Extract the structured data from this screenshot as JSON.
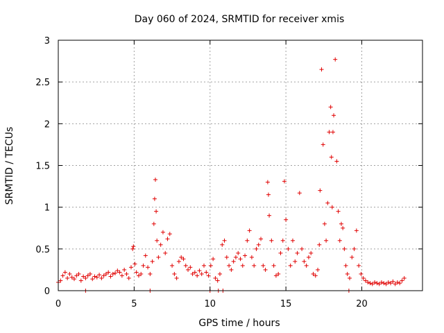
{
  "chart_data": {
    "type": "scatter",
    "title": "Day 060 of 2024, SRMTID for receiver xmis",
    "xlabel": "GPS time / hours",
    "ylabel": "SRMTID / TECUs",
    "xlim": [
      0,
      24
    ],
    "ylim": [
      0,
      3
    ],
    "xticks": [
      0,
      5,
      10,
      15,
      20
    ],
    "yticks": [
      0,
      0.5,
      1,
      1.5,
      2,
      2.5,
      3
    ],
    "xtick_labels": [
      "0",
      "5",
      "10",
      "15",
      "20"
    ],
    "ytick_labels": [
      "0",
      "0.5",
      "1",
      "1.5",
      "2",
      "2.5",
      "3"
    ],
    "grid": true,
    "marker": "plus",
    "color": "#e00000",
    "series": [
      {
        "name": "SRMTID",
        "x": [
          0.0,
          0.15,
          0.3,
          0.45,
          0.6,
          0.75,
          0.9,
          1.05,
          1.2,
          1.35,
          1.5,
          1.65,
          1.8,
          1.95,
          2.1,
          2.25,
          2.4,
          2.55,
          2.7,
          2.85,
          3.0,
          3.15,
          3.3,
          3.45,
          3.6,
          3.75,
          3.9,
          4.05,
          4.2,
          4.35,
          4.5,
          4.65,
          4.8,
          4.9,
          4.95,
          5.05,
          5.15,
          5.3,
          5.45,
          5.6,
          5.75,
          5.9,
          6.05,
          6.2,
          6.3,
          6.35,
          6.4,
          6.45,
          6.5,
          6.6,
          6.75,
          6.9,
          7.05,
          7.2,
          7.35,
          7.5,
          7.65,
          7.8,
          7.95,
          8.1,
          8.25,
          8.4,
          8.55,
          8.7,
          8.85,
          9.0,
          9.15,
          9.3,
          9.45,
          9.6,
          9.75,
          9.9,
          10.05,
          10.2,
          10.35,
          10.5,
          10.65,
          10.8,
          10.95,
          11.1,
          11.25,
          11.4,
          11.55,
          11.7,
          11.85,
          12.0,
          12.15,
          12.3,
          12.45,
          12.6,
          12.75,
          12.9,
          13.05,
          13.2,
          13.35,
          13.5,
          13.65,
          13.8,
          13.85,
          13.9,
          14.05,
          14.2,
          14.35,
          14.5,
          14.65,
          14.8,
          14.9,
          15.0,
          15.15,
          15.3,
          15.45,
          15.6,
          15.75,
          15.9,
          16.05,
          16.2,
          16.35,
          16.5,
          16.65,
          16.8,
          16.95,
          17.1,
          17.2,
          17.25,
          17.35,
          17.45,
          17.55,
          17.65,
          17.75,
          17.85,
          17.95,
          18.0,
          18.05,
          18.1,
          18.15,
          18.25,
          18.35,
          18.45,
          18.55,
          18.65,
          18.75,
          18.85,
          18.95,
          19.05,
          19.2,
          19.35,
          19.5,
          19.65,
          19.8,
          19.95,
          20.1,
          20.25,
          20.4,
          20.55,
          20.7,
          20.85,
          21.0,
          21.15,
          21.3,
          21.45,
          21.6,
          21.75,
          21.9,
          22.05,
          22.2,
          22.35,
          22.5,
          22.65,
          22.8,
          1.8,
          6.05,
          10.0,
          10.55,
          10.85,
          19.15
        ],
        "y": [
          0.1,
          0.12,
          0.18,
          0.22,
          0.15,
          0.2,
          0.16,
          0.14,
          0.18,
          0.2,
          0.12,
          0.17,
          0.15,
          0.18,
          0.2,
          0.14,
          0.17,
          0.16,
          0.19,
          0.15,
          0.18,
          0.2,
          0.22,
          0.17,
          0.2,
          0.21,
          0.24,
          0.22,
          0.18,
          0.25,
          0.2,
          0.15,
          0.28,
          0.5,
          0.53,
          0.32,
          0.22,
          0.18,
          0.2,
          0.3,
          0.42,
          0.28,
          0.2,
          0.35,
          0.8,
          1.1,
          1.33,
          0.95,
          0.6,
          0.4,
          0.55,
          0.7,
          0.45,
          0.62,
          0.68,
          0.3,
          0.2,
          0.15,
          0.35,
          0.4,
          0.38,
          0.3,
          0.25,
          0.28,
          0.2,
          0.22,
          0.18,
          0.24,
          0.2,
          0.3,
          0.22,
          0.18,
          0.3,
          0.38,
          0.15,
          0.12,
          0.2,
          0.55,
          0.6,
          0.4,
          0.3,
          0.25,
          0.35,
          0.4,
          0.45,
          0.38,
          0.3,
          0.42,
          0.6,
          0.72,
          0.4,
          0.3,
          0.5,
          0.55,
          0.62,
          0.3,
          0.25,
          1.3,
          1.15,
          0.9,
          0.6,
          0.3,
          0.18,
          0.2,
          0.45,
          0.6,
          1.31,
          0.85,
          0.5,
          0.3,
          0.6,
          0.35,
          0.45,
          1.17,
          0.5,
          0.35,
          0.3,
          0.4,
          0.45,
          0.2,
          0.18,
          0.25,
          0.55,
          1.2,
          2.65,
          1.75,
          0.8,
          0.6,
          1.05,
          1.9,
          2.2,
          1.6,
          1.0,
          1.9,
          2.1,
          2.77,
          1.55,
          0.95,
          0.6,
          0.8,
          0.75,
          0.5,
          0.3,
          0.2,
          0.15,
          0.4,
          0.5,
          0.72,
          0.3,
          0.2,
          0.15,
          0.12,
          0.1,
          0.09,
          0.08,
          0.1,
          0.09,
          0.08,
          0.1,
          0.09,
          0.08,
          0.1,
          0.09,
          0.11,
          0.08,
          0.1,
          0.09,
          0.12,
          0.15,
          0.0,
          0.0,
          0.0,
          0.0,
          0.0,
          0.0
        ]
      }
    ]
  }
}
